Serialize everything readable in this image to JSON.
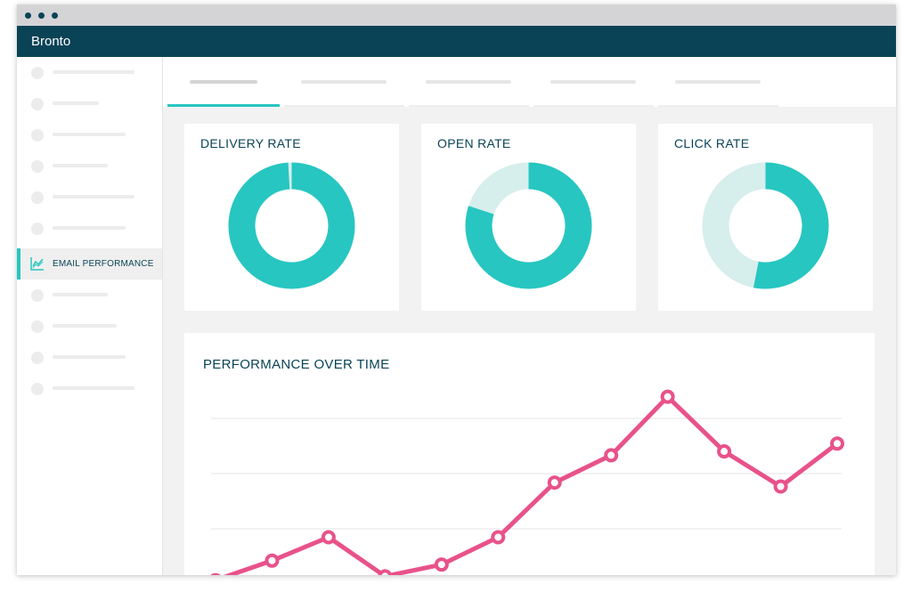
{
  "app": {
    "title": "Bronto"
  },
  "sidebar": {
    "items": [
      {
        "label": ""
      },
      {
        "label": ""
      },
      {
        "label": ""
      },
      {
        "label": ""
      },
      {
        "label": ""
      },
      {
        "label": ""
      },
      {
        "label": "EMAIL PERFORMANCE",
        "active": true,
        "icon": "line-chart-icon"
      },
      {
        "label": ""
      },
      {
        "label": ""
      },
      {
        "label": ""
      },
      {
        "label": ""
      }
    ]
  },
  "tabs": [
    {
      "label": "",
      "active": true
    },
    {
      "label": ""
    },
    {
      "label": ""
    },
    {
      "label": ""
    },
    {
      "label": ""
    }
  ],
  "metrics": [
    {
      "title": "DELIVERY RATE",
      "fill_fraction": 0.99
    },
    {
      "title": "OPEN RATE",
      "fill_fraction": 0.8
    },
    {
      "title": "CLICK RATE",
      "fill_fraction": 0.53
    }
  ],
  "colors": {
    "primary": "#0a4356",
    "accent": "#27c6c1",
    "accent_light": "#d6eeec",
    "line": "#e8528a"
  },
  "performance": {
    "title": "PERFORMANCE OVER TIME",
    "chart_data": {
      "type": "line",
      "x": [
        1,
        2,
        3,
        4,
        5,
        6,
        7,
        8,
        9,
        10,
        11,
        12
      ],
      "series": [
        {
          "values": [
            0.6,
            1.1,
            1.7,
            0.7,
            1.0,
            1.7,
            3.1,
            3.8,
            5.3,
            3.9,
            3.0,
            4.1
          ]
        }
      ],
      "ylim": [
        0,
        6
      ],
      "grid": true
    }
  }
}
